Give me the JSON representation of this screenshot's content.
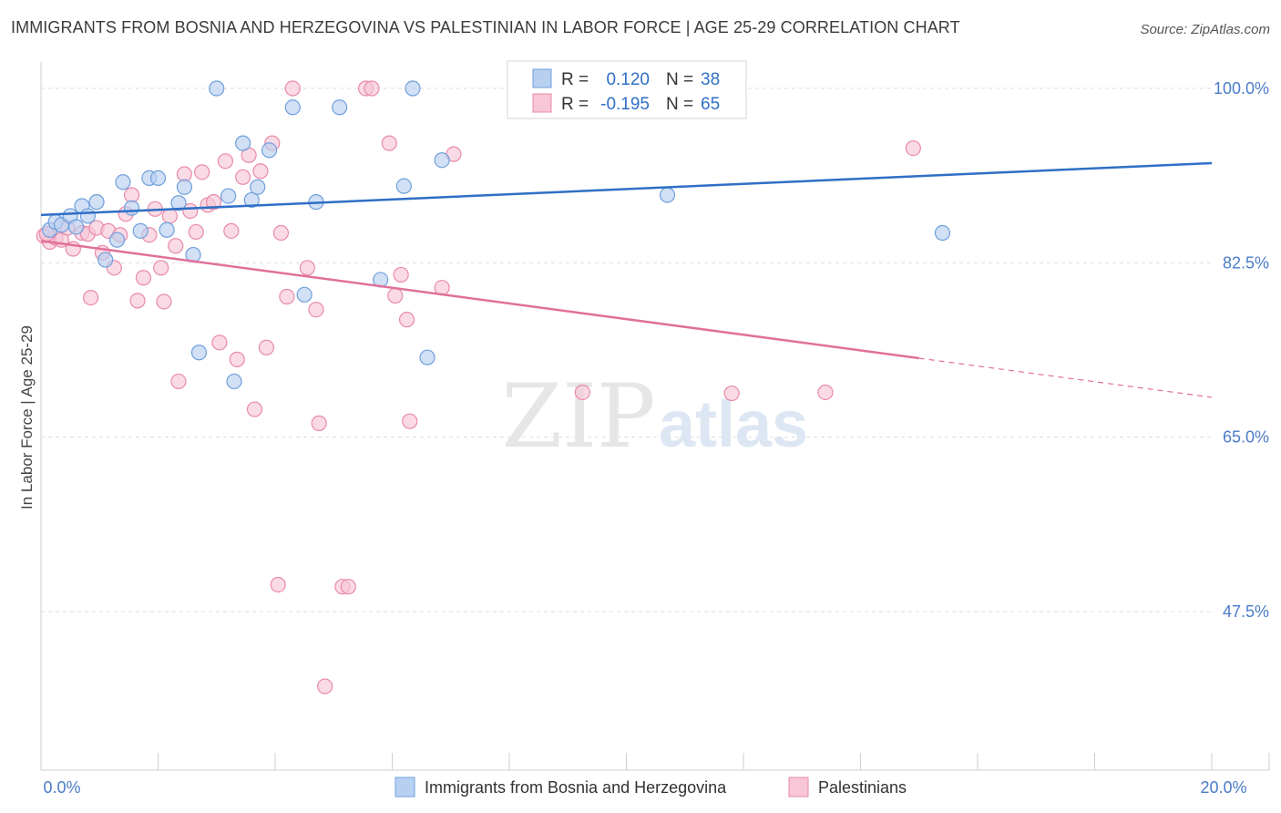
{
  "header": {
    "title": "IMMIGRANTS FROM BOSNIA AND HERZEGOVINA VS PALESTINIAN IN LABOR FORCE | AGE 25-29 CORRELATION CHART",
    "source": "Source: ZipAtlas.com"
  },
  "watermark": {
    "zip": "ZIP",
    "atlas": "atlas"
  },
  "legend_box": {
    "rows": [
      {
        "r_label": "R =",
        "r_value": "0.120",
        "n_label": "N =",
        "n_value": "38"
      },
      {
        "r_label": "R =",
        "r_value": "-0.195",
        "n_label": "N =",
        "n_value": "65"
      }
    ]
  },
  "colors": {
    "blue_fill": "#b8d0f0",
    "blue_stroke": "#6f9fdc",
    "blue_line": "#2f6fc6",
    "pink_fill": "#f8c6d6",
    "pink_stroke": "#e98aab",
    "pink_line": "#e0709a",
    "axis_label": "#4a7cc8",
    "grid": "#dddddd"
  },
  "chart_data": {
    "type": "scatter",
    "title": "IMMIGRANTS FROM BOSNIA AND HERZEGOVINA VS PALESTINIAN IN LABOR FORCE | AGE 25-29 CORRELATION CHART",
    "xlabel": "",
    "ylabel": "In Labor Force | Age 25-29",
    "xlim": [
      0,
      20
    ],
    "ylim": [
      32.0,
      102.0
    ],
    "x_tick_labels": [
      "0.0%",
      "20.0%"
    ],
    "y_ticks": [
      47.5,
      65.0,
      82.5,
      100.0
    ],
    "y_tick_labels": [
      "47.5%",
      "65.0%",
      "82.5%",
      "100.0%"
    ],
    "grid": true,
    "legend_position": "bottom",
    "series": [
      {
        "name": "Immigrants from Bosnia and Herzegovina",
        "color": "#6f9fdc",
        "r": 0.12,
        "n": 38,
        "trend": {
          "x0": 0.0,
          "y0": 87.3,
          "x1": 20.0,
          "y1": 92.5,
          "solid_until": 20.0
        },
        "points": [
          [
            0.15,
            85.8
          ],
          [
            0.25,
            86.6
          ],
          [
            0.35,
            86.3
          ],
          [
            0.5,
            87.2
          ],
          [
            0.6,
            86.1
          ],
          [
            0.7,
            88.2
          ],
          [
            0.8,
            87.2
          ],
          [
            0.95,
            88.6
          ],
          [
            1.1,
            82.8
          ],
          [
            1.3,
            84.8
          ],
          [
            1.4,
            90.6
          ],
          [
            1.55,
            88.0
          ],
          [
            1.7,
            85.7
          ],
          [
            1.85,
            91.0
          ],
          [
            2.0,
            91.0
          ],
          [
            2.15,
            85.8
          ],
          [
            2.35,
            88.5
          ],
          [
            2.45,
            90.1
          ],
          [
            2.6,
            83.3
          ],
          [
            2.7,
            73.5
          ],
          [
            3.0,
            100.0
          ],
          [
            3.2,
            89.2
          ],
          [
            3.3,
            70.6
          ],
          [
            3.45,
            94.5
          ],
          [
            3.6,
            88.8
          ],
          [
            3.7,
            90.1
          ],
          [
            3.9,
            93.8
          ],
          [
            4.3,
            98.1
          ],
          [
            4.5,
            79.3
          ],
          [
            4.7,
            88.6
          ],
          [
            5.1,
            98.1
          ],
          [
            5.8,
            80.8
          ],
          [
            6.2,
            90.2
          ],
          [
            6.35,
            100.0
          ],
          [
            6.6,
            73.0
          ],
          [
            6.85,
            92.8
          ],
          [
            10.7,
            89.3
          ],
          [
            15.4,
            85.5
          ]
        ]
      },
      {
        "name": "Palestinians",
        "color": "#e98aab",
        "r": -0.195,
        "n": 65,
        "trend": {
          "x0": 0.0,
          "y0": 84.7,
          "x1": 20.0,
          "y1": 69.0,
          "solid_until": 15.0
        },
        "points": [
          [
            0.05,
            85.2
          ],
          [
            0.15,
            84.6
          ],
          [
            0.25,
            85.0
          ],
          [
            0.35,
            84.8
          ],
          [
            0.45,
            86.0
          ],
          [
            0.55,
            83.9
          ],
          [
            0.7,
            85.5
          ],
          [
            0.8,
            85.4
          ],
          [
            0.85,
            79.0
          ],
          [
            0.95,
            86.0
          ],
          [
            1.05,
            83.5
          ],
          [
            1.15,
            85.7
          ],
          [
            1.25,
            82.0
          ],
          [
            1.35,
            85.3
          ],
          [
            1.45,
            87.4
          ],
          [
            1.55,
            89.3
          ],
          [
            1.65,
            78.7
          ],
          [
            1.75,
            81.0
          ],
          [
            1.85,
            85.3
          ],
          [
            1.95,
            87.9
          ],
          [
            2.05,
            82.0
          ],
          [
            2.1,
            78.6
          ],
          [
            2.2,
            87.2
          ],
          [
            2.3,
            84.2
          ],
          [
            2.35,
            70.6
          ],
          [
            2.45,
            91.4
          ],
          [
            2.55,
            87.7
          ],
          [
            2.65,
            85.6
          ],
          [
            2.75,
            91.6
          ],
          [
            2.85,
            88.3
          ],
          [
            2.95,
            88.6
          ],
          [
            3.05,
            74.5
          ],
          [
            3.15,
            92.7
          ],
          [
            3.25,
            85.7
          ],
          [
            3.35,
            72.8
          ],
          [
            3.45,
            91.1
          ],
          [
            3.55,
            93.3
          ],
          [
            3.65,
            67.8
          ],
          [
            3.75,
            91.7
          ],
          [
            3.85,
            74.0
          ],
          [
            3.95,
            94.5
          ],
          [
            4.05,
            50.2
          ],
          [
            4.1,
            85.5
          ],
          [
            4.2,
            79.1
          ],
          [
            4.3,
            100.0
          ],
          [
            4.55,
            82.0
          ],
          [
            4.7,
            77.8
          ],
          [
            4.75,
            66.4
          ],
          [
            5.15,
            50.0
          ],
          [
            5.25,
            50.0
          ],
          [
            5.55,
            100.0
          ],
          [
            5.65,
            100.0
          ],
          [
            5.95,
            94.5
          ],
          [
            6.05,
            79.2
          ],
          [
            6.15,
            81.3
          ],
          [
            6.25,
            76.8
          ],
          [
            6.3,
            66.6
          ],
          [
            6.85,
            80.0
          ],
          [
            7.05,
            93.4
          ],
          [
            9.25,
            69.5
          ],
          [
            11.8,
            69.4
          ],
          [
            13.4,
            69.5
          ],
          [
            14.9,
            94.0
          ],
          [
            4.85,
            40.0
          ],
          [
            0.1,
            85.4
          ]
        ]
      }
    ]
  }
}
